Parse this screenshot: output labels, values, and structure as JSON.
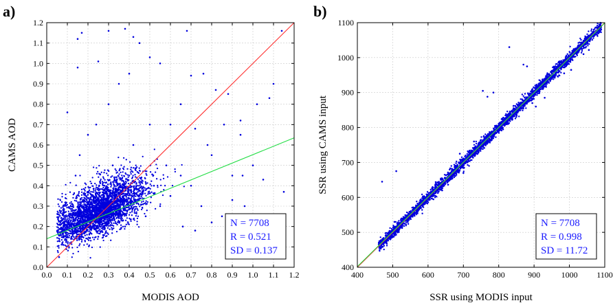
{
  "chart_data": [
    {
      "type": "scatter",
      "panel_label": "a)",
      "title": "",
      "xlabel": "MODIS AOD",
      "ylabel": "CAMS AOD",
      "xlim": [
        0.0,
        1.2
      ],
      "ylim": [
        0.0,
        1.2
      ],
      "xticks": [
        "0.0",
        "0.1",
        "0.2",
        "0.3",
        "0.4",
        "0.5",
        "0.6",
        "0.7",
        "0.8",
        "0.9",
        "1.0",
        "1.1",
        "1.2"
      ],
      "yticks": [
        "0.0",
        "0.1",
        "0.2",
        "0.3",
        "0.4",
        "0.5",
        "0.6",
        "0.7",
        "0.8",
        "0.9",
        "1.0",
        "1.1",
        "1.2"
      ],
      "grid": true,
      "point_color": "#0000dd",
      "lines": [
        {
          "color": "#ff3030",
          "x": [
            0.0,
            1.2
          ],
          "y": [
            0.0,
            1.2
          ]
        },
        {
          "color": "#22dd44",
          "x": [
            0.0,
            1.2
          ],
          "y": [
            0.14,
            0.635
          ]
        }
      ],
      "stats": [
        "N = 7708",
        "R = 0.521",
        "SD = 0.137"
      ],
      "stats_position": "bottom-right",
      "points": [
        [
          0.06,
          0.05
        ],
        [
          0.08,
          0.11
        ],
        [
          0.1,
          0.2
        ],
        [
          0.12,
          0.15
        ],
        [
          0.15,
          0.25
        ],
        [
          0.18,
          0.3
        ],
        [
          0.2,
          0.2
        ],
        [
          0.22,
          0.35
        ],
        [
          0.25,
          0.15
        ],
        [
          0.28,
          0.4
        ],
        [
          0.3,
          0.25
        ],
        [
          0.32,
          0.5
        ],
        [
          0.35,
          0.3
        ],
        [
          0.38,
          0.2
        ],
        [
          0.4,
          0.45
        ],
        [
          0.42,
          0.6
        ],
        [
          0.45,
          0.35
        ],
        [
          0.48,
          0.25
        ],
        [
          0.5,
          0.7
        ],
        [
          0.52,
          0.4
        ],
        [
          0.55,
          0.3
        ],
        [
          0.58,
          0.5
        ],
        [
          0.6,
          0.35
        ],
        [
          0.65,
          0.45
        ],
        [
          0.7,
          0.4
        ],
        [
          0.75,
          0.3
        ],
        [
          0.8,
          0.55
        ],
        [
          0.85,
          0.25
        ],
        [
          0.9,
          0.33
        ],
        [
          0.95,
          0.45
        ],
        [
          1.0,
          0.5
        ],
        [
          1.05,
          0.43
        ],
        [
          1.1,
          0.9
        ],
        [
          1.15,
          0.37
        ],
        [
          0.14,
          0.45
        ],
        [
          0.16,
          0.55
        ],
        [
          0.2,
          0.65
        ],
        [
          0.24,
          0.7
        ],
        [
          0.3,
          0.8
        ],
        [
          0.35,
          0.9
        ],
        [
          0.4,
          0.95
        ],
        [
          0.45,
          1.1
        ],
        [
          0.5,
          1.03
        ],
        [
          0.55,
          1.0
        ],
        [
          0.3,
          1.16
        ],
        [
          0.38,
          1.17
        ],
        [
          0.68,
          1.16
        ],
        [
          0.15,
          1.12
        ],
        [
          0.17,
          1.15
        ],
        [
          0.42,
          1.13
        ],
        [
          0.7,
          0.94
        ],
        [
          0.76,
          0.95
        ],
        [
          0.82,
          0.87
        ],
        [
          0.88,
          0.85
        ],
        [
          0.94,
          0.72
        ],
        [
          1.02,
          0.8
        ],
        [
          1.08,
          0.83
        ],
        [
          1.14,
          1.16
        ],
        [
          0.1,
          0.76
        ],
        [
          0.15,
          0.98
        ],
        [
          0.25,
          1.01
        ],
        [
          0.6,
          0.7
        ],
        [
          0.65,
          0.8
        ],
        [
          0.72,
          0.68
        ],
        [
          0.78,
          0.6
        ],
        [
          0.86,
          0.7
        ],
        [
          0.94,
          0.65
        ],
        [
          0.66,
          0.2
        ],
        [
          0.72,
          0.18
        ],
        [
          0.8,
          0.22
        ],
        [
          0.9,
          0.45
        ],
        [
          0.96,
          0.3
        ]
      ]
    },
    {
      "type": "scatter",
      "panel_label": "b)",
      "title": "",
      "xlabel": "SSR using MODIS input",
      "ylabel": "SSR using CAMS input",
      "xlim": [
        400,
        1100
      ],
      "ylim": [
        400,
        1100
      ],
      "xticks": [
        "400",
        "500",
        "600",
        "700",
        "800",
        "900",
        "1000",
        "1100"
      ],
      "yticks": [
        "400",
        "500",
        "600",
        "700",
        "800",
        "900",
        "1000",
        "1100"
      ],
      "grid": true,
      "point_color": "#0000dd",
      "lines": [
        {
          "color": "#ff3030",
          "x": [
            400,
            1100
          ],
          "y": [
            400,
            1100
          ]
        },
        {
          "color": "#22dd44",
          "x": [
            400,
            1100
          ],
          "y": [
            402,
            1099
          ]
        }
      ],
      "stats": [
        "N = 7708",
        "R = 0.998",
        "SD = 11.72"
      ],
      "stats_position": "bottom-right",
      "points": [
        [
          465,
          470
        ],
        [
          480,
          490
        ],
        [
          500,
          505
        ],
        [
          520,
          518
        ],
        [
          550,
          552
        ],
        [
          580,
          578
        ],
        [
          600,
          602
        ],
        [
          620,
          618
        ],
        [
          650,
          655
        ],
        [
          680,
          676
        ],
        [
          700,
          702
        ],
        [
          720,
          718
        ],
        [
          750,
          752
        ],
        [
          780,
          778
        ],
        [
          800,
          803
        ],
        [
          820,
          818
        ],
        [
          850,
          852
        ],
        [
          880,
          878
        ],
        [
          900,
          905
        ],
        [
          920,
          918
        ],
        [
          950,
          955
        ],
        [
          980,
          978
        ],
        [
          1000,
          1003
        ],
        [
          1020,
          1018
        ],
        [
          1050,
          1052
        ],
        [
          1080,
          1082
        ],
        [
          470,
          645
        ],
        [
          510,
          675
        ],
        [
          505,
          530
        ],
        [
          830,
          1030
        ],
        [
          870,
          980
        ],
        [
          880,
          975
        ],
        [
          755,
          905
        ],
        [
          768,
          888
        ],
        [
          785,
          900
        ],
        [
          895,
          870
        ],
        [
          905,
          860
        ],
        [
          930,
          885
        ],
        [
          985,
          955
        ],
        [
          1005,
          965
        ],
        [
          1040,
          1010
        ],
        [
          1055,
          1022
        ],
        [
          690,
          725
        ],
        [
          730,
          760
        ],
        [
          640,
          620
        ],
        [
          700,
          670
        ]
      ]
    }
  ]
}
